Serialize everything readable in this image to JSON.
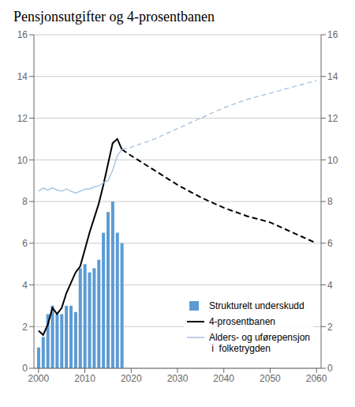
{
  "chart_data": {
    "type": "bar",
    "title": "Pensjonsutgifter og 4-prosentbanen",
    "series": [
      {
        "name": "Strukturelt underskudd",
        "type": "bar",
        "color": "#5B9BD5",
        "x": [
          2000,
          2001,
          2002,
          2003,
          2004,
          2005,
          2006,
          2007,
          2008,
          2009,
          2010,
          2011,
          2012,
          2013,
          2014,
          2015,
          2016,
          2017,
          2018
        ],
        "values": [
          1.0,
          1.5,
          2.6,
          3.0,
          2.6,
          2.6,
          3.0,
          3.0,
          2.7,
          4.8,
          5.0,
          4.6,
          4.8,
          5.2,
          6.5,
          7.5,
          8.0,
          6.5,
          6.0
        ]
      },
      {
        "name": "4-prosentbanen",
        "type": "line",
        "color": "#000000",
        "line_style": "solid_then_dashed",
        "dashed_from_x": 2018,
        "x": [
          2000,
          2001,
          2002,
          2003,
          2004,
          2005,
          2006,
          2007,
          2008,
          2009,
          2010,
          2011,
          2012,
          2013,
          2014,
          2015,
          2016,
          2017,
          2018,
          2020,
          2025,
          2030,
          2035,
          2040,
          2045,
          2050,
          2055,
          2060
        ],
        "values": [
          1.8,
          1.6,
          2.1,
          2.9,
          2.6,
          2.9,
          3.6,
          4.1,
          4.6,
          4.9,
          5.7,
          6.5,
          7.2,
          7.9,
          8.8,
          9.8,
          10.8,
          11.0,
          10.5,
          10.2,
          9.5,
          8.8,
          8.2,
          7.7,
          7.3,
          7.0,
          6.5,
          6.0
        ]
      },
      {
        "name": "Alders- og uførepensjon\n i  folketrygden",
        "type": "line",
        "color": "#A8C4E0",
        "line_style": "solid_then_dashed",
        "dashed_from_x": 2018,
        "x": [
          2000,
          2001,
          2002,
          2003,
          2004,
          2005,
          2006,
          2007,
          2008,
          2009,
          2010,
          2011,
          2012,
          2013,
          2014,
          2015,
          2016,
          2017,
          2018,
          2020,
          2025,
          2030,
          2035,
          2040,
          2045,
          2050,
          2055,
          2060
        ],
        "values": [
          8.5,
          8.65,
          8.55,
          8.65,
          8.55,
          8.5,
          8.6,
          8.5,
          8.4,
          8.5,
          8.6,
          8.6,
          8.7,
          8.75,
          8.9,
          9.0,
          9.5,
          10.2,
          10.5,
          10.6,
          11.0,
          11.5,
          12.0,
          12.5,
          12.9,
          13.2,
          13.5,
          13.8
        ]
      }
    ],
    "xlim": [
      1999,
      2061
    ],
    "xticks": [
      2000,
      2010,
      2020,
      2030,
      2040,
      2050,
      2060
    ],
    "ylim": [
      0,
      16
    ],
    "yticks": [
      0,
      2,
      4,
      6,
      8,
      10,
      12,
      14,
      16
    ],
    "y2lim": [
      0,
      16
    ],
    "y2ticks": [
      0,
      2,
      4,
      6,
      8,
      10,
      12,
      14,
      16
    ],
    "grid": true,
    "legend": "lower right"
  }
}
